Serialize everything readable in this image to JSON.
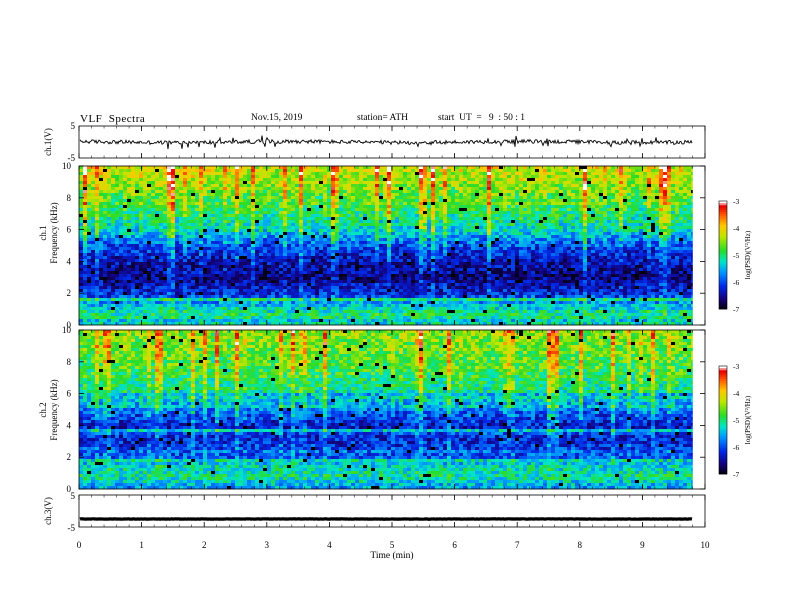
{
  "header": {
    "title": "VLF  Spectra",
    "date": "Nov.15, 2019",
    "station": "station= ATH",
    "start_time": "start  UT  =   9  : 50 : 1"
  },
  "chart_data": [
    {
      "id": "ch1-waveform",
      "type": "line",
      "ylabel": "ch.1(V)",
      "ylim": [
        -5,
        5
      ],
      "yticks": [
        "5",
        "-5"
      ],
      "xlim": [
        0,
        10
      ],
      "series": [
        {
          "baseline": 0,
          "noise_amplitude": 0.6,
          "spike_amplitude": 1.8,
          "x_end": 9.8
        }
      ]
    },
    {
      "id": "ch1-spectrogram",
      "type": "heatmap",
      "ylabel": "ch.1\nFrequency (kHz)",
      "ylabel_channel": "ch.1",
      "ylabel_quantity": "Frequency (kHz)",
      "ylim": [
        0,
        10
      ],
      "yticks": [
        "0",
        "2",
        "4",
        "6",
        "8",
        "10"
      ],
      "xlim": [
        0,
        10
      ],
      "data_x_end": 9.8,
      "colorbar": {
        "label": "log(PSD)(V²/Hz)",
        "range": [
          -7,
          -3
        ],
        "ticks": [
          "-3",
          "-4",
          "-5",
          "-6",
          "-7"
        ]
      },
      "profile": [
        {
          "f": 0.0,
          "level": -5.2
        },
        {
          "f": 0.7,
          "level": -5.0
        },
        {
          "f": 1.2,
          "level": -5.4
        },
        {
          "f": 2.0,
          "level": -6.2
        },
        {
          "f": 3.0,
          "level": -6.6
        },
        {
          "f": 4.0,
          "level": -6.4
        },
        {
          "f": 5.0,
          "level": -6.0
        },
        {
          "f": 6.0,
          "level": -5.3
        },
        {
          "f": 7.5,
          "level": -4.9
        },
        {
          "f": 9.0,
          "level": -4.5
        },
        {
          "f": 10.0,
          "level": -4.3
        }
      ]
    },
    {
      "id": "ch2-spectrogram",
      "type": "heatmap",
      "ylabel": "ch.2\nFrequency (kHz)",
      "ylabel_channel": "ch.2",
      "ylabel_quantity": "Frequency (kHz)",
      "ylim": [
        0,
        10
      ],
      "yticks": [
        "0",
        "2",
        "4",
        "6",
        "8",
        "10"
      ],
      "xlim": [
        0,
        10
      ],
      "data_x_end": 9.8,
      "colorbar": {
        "label": "log(PSD)(V²/Hz)",
        "range": [
          -7,
          -3
        ],
        "ticks": [
          "-3",
          "-4",
          "-5",
          "-6",
          "-7"
        ]
      },
      "profile": [
        {
          "f": 0.0,
          "level": -5.6
        },
        {
          "f": 0.8,
          "level": -5.1
        },
        {
          "f": 1.5,
          "level": -5.3
        },
        {
          "f": 2.0,
          "level": -5.9
        },
        {
          "f": 3.0,
          "level": -6.2
        },
        {
          "f": 4.0,
          "level": -6.3
        },
        {
          "f": 5.0,
          "level": -5.8
        },
        {
          "f": 6.0,
          "level": -5.2
        },
        {
          "f": 7.5,
          "level": -4.9
        },
        {
          "f": 9.0,
          "level": -4.7
        },
        {
          "f": 10.0,
          "level": -4.6
        }
      ]
    },
    {
      "id": "ch3-waveform",
      "type": "line",
      "ylabel": "ch.3(V)",
      "ylim": [
        -5,
        5
      ],
      "yticks": [
        "5",
        "-5"
      ],
      "xlim": [
        0,
        10
      ],
      "xlabel": "Time  (min)",
      "xticks": [
        "0",
        "1",
        "2",
        "3",
        "4",
        "5",
        "6",
        "7",
        "8",
        "9",
        "10"
      ],
      "series": [
        {
          "baseline": -2.5,
          "noise_amplitude": 0.05,
          "x_end": 9.8
        }
      ]
    }
  ]
}
